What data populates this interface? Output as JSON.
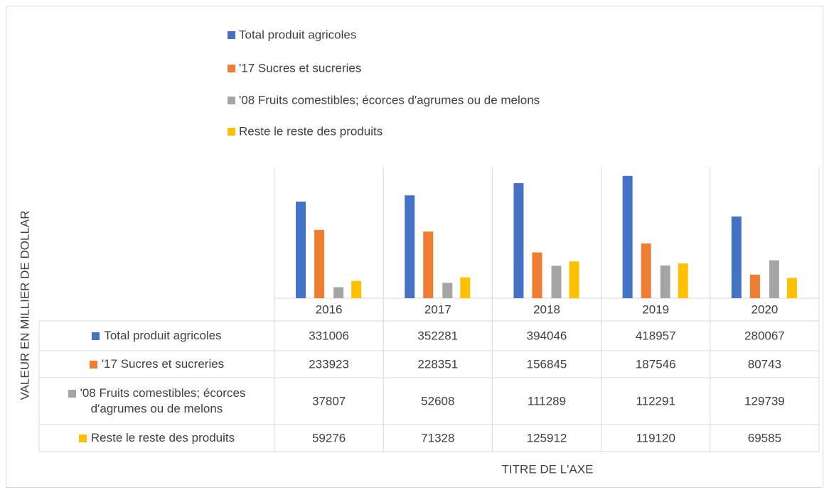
{
  "chart_data": {
    "type": "bar",
    "categories": [
      "2016",
      "2017",
      "2018",
      "2019",
      "2020"
    ],
    "series": [
      {
        "name": "Total  produit agricoles",
        "color": "#4472c4",
        "values": [
          331006,
          352281,
          394046,
          418957,
          280067
        ]
      },
      {
        "name": "'17 Sucres et sucreries",
        "color": "#ed7d31",
        "values": [
          233923,
          228351,
          156845,
          187546,
          80743
        ]
      },
      {
        "name": "'08 Fruits comestibles; écorces d'agrumes ou de melons",
        "color": "#a5a5a5",
        "values": [
          37807,
          52608,
          111289,
          112291,
          129739
        ]
      },
      {
        "name": "Reste  le reste des produits",
        "color": "#ffc000",
        "values": [
          59276,
          71328,
          125912,
          119120,
          69585
        ]
      }
    ],
    "ylim": [
      0,
      450000
    ],
    "y_label": "VALEUR EN MILLIER DE DOLLAR",
    "x_label": "TITRE DE L'AXE",
    "legend": "top"
  }
}
